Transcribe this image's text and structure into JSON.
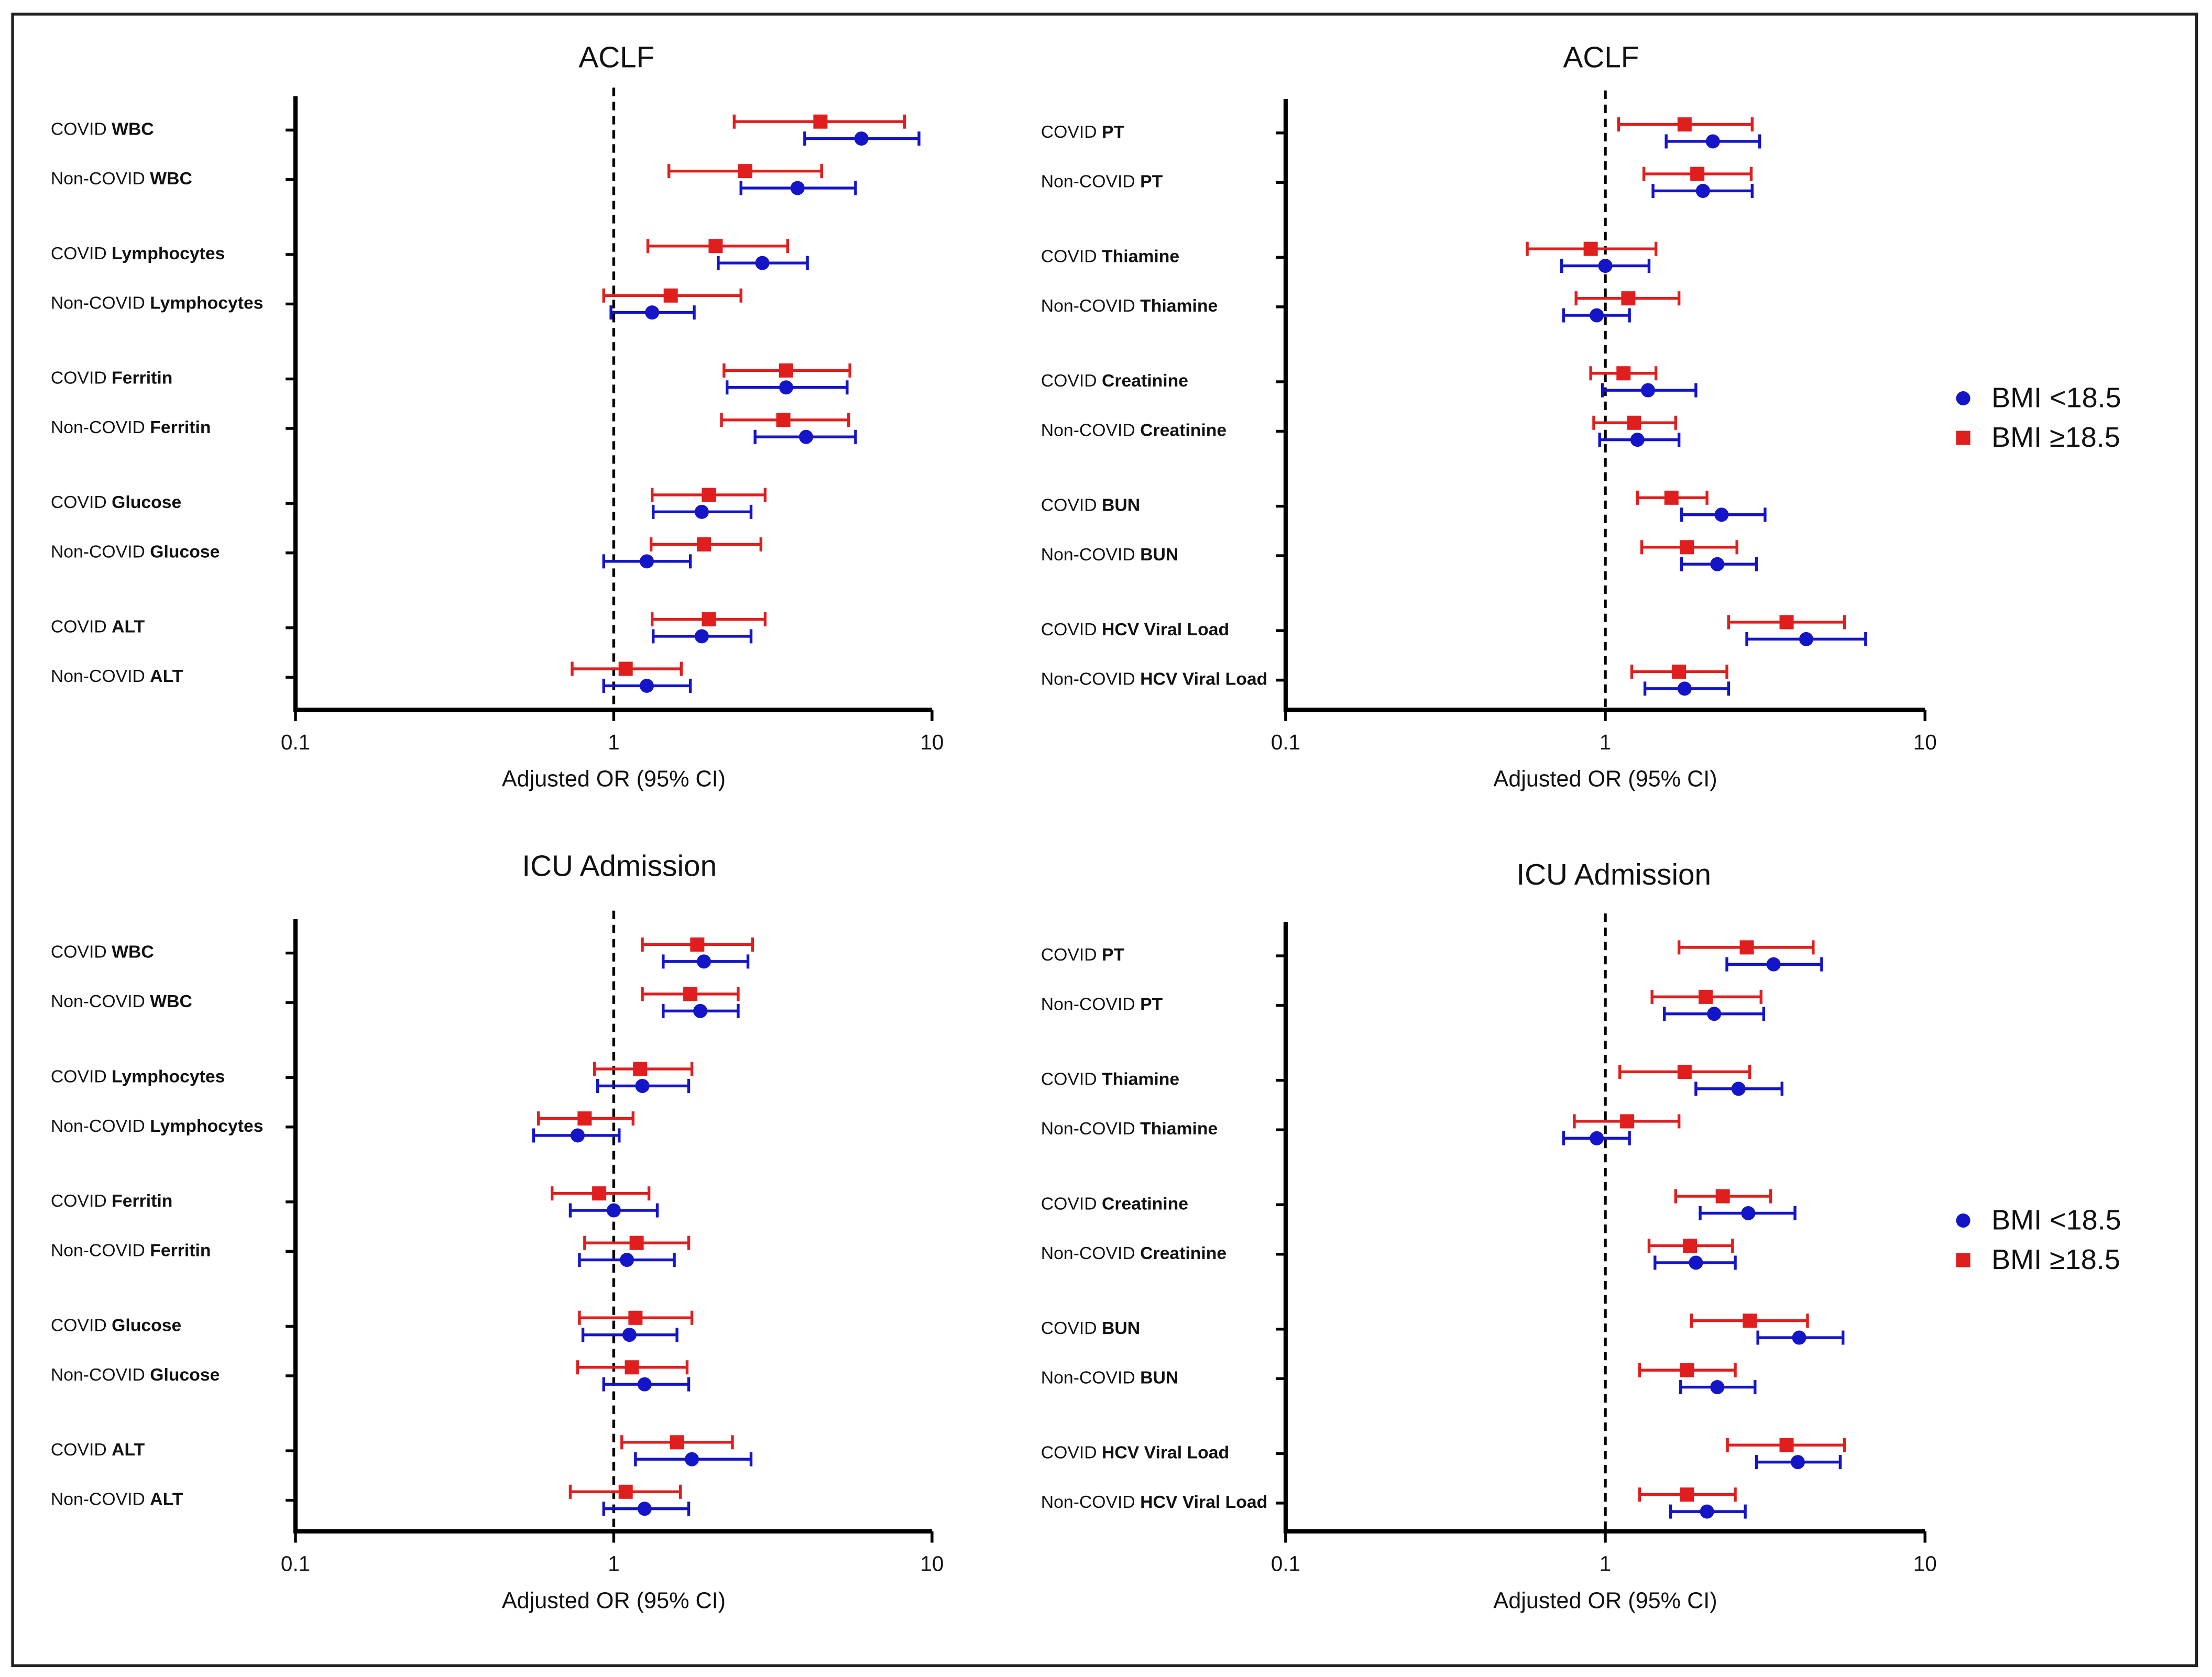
{
  "chart_data": [
    {
      "type": "forest",
      "title": "ACLF",
      "x_label": "Adjusted OR (95% CI)",
      "xscale": "log",
      "xlim": [
        0.1,
        10
      ],
      "xticks": [
        0.1,
        1,
        10
      ],
      "reference_line": 1,
      "categories": [
        [
          "COVID",
          "WBC"
        ],
        [
          "Non-COVID",
          "WBC"
        ],
        [
          "COVID",
          "Lymphocytes"
        ],
        [
          "Non-COVID",
          "Lymphocytes"
        ],
        [
          "COVID",
          "Ferritin"
        ],
        [
          "Non-COVID",
          "Ferritin"
        ],
        [
          "COVID",
          "Glucose"
        ],
        [
          "Non-COVID",
          "Glucose"
        ],
        [
          "COVID",
          "ALT"
        ],
        [
          "Non-COVID",
          "ALT"
        ]
      ],
      "series": [
        {
          "color": "#1414c8",
          "marker": "circle",
          "values": [
            6.0,
            3.78,
            2.93,
            1.32,
            3.48,
            4.02,
            1.89,
            1.27,
            1.89,
            1.27
          ],
          "ci_low": [
            3.98,
            2.51,
            2.13,
            0.98,
            2.27,
            2.78,
            1.33,
            0.93,
            1.33,
            0.93
          ],
          "ci_high": [
            9.1,
            5.75,
            4.06,
            1.79,
            5.41,
            5.75,
            2.7,
            1.74,
            2.7,
            1.74
          ]
        },
        {
          "color": "#e01e1e",
          "marker": "square",
          "values": [
            4.46,
            2.59,
            2.09,
            1.51,
            3.48,
            3.41,
            1.99,
            1.92,
            1.99,
            1.09
          ],
          "ci_low": [
            2.39,
            1.49,
            1.28,
            0.93,
            2.22,
            2.18,
            1.32,
            1.31,
            1.32,
            0.74
          ],
          "ci_high": [
            8.2,
            4.5,
            3.52,
            2.51,
            5.52,
            5.47,
            2.99,
            2.9,
            2.99,
            1.63
          ]
        }
      ]
    },
    {
      "type": "forest",
      "title": "ACLF",
      "x_label": "Adjusted OR (95% CI)",
      "xscale": "log",
      "xlim": [
        0.1,
        10
      ],
      "xticks": [
        0.1,
        1,
        10
      ],
      "reference_line": 1,
      "legend": "right",
      "categories": [
        [
          "COVID",
          "PT"
        ],
        [
          "Non-COVID",
          "PT"
        ],
        [
          "COVID",
          "Thiamine"
        ],
        [
          "Non-COVID",
          "Thiamine"
        ],
        [
          "COVID",
          "Creatinine"
        ],
        [
          "Non-COVID",
          "Creatinine"
        ],
        [
          "COVID",
          "BUN"
        ],
        [
          "Non-COVID",
          "BUN"
        ],
        [
          "COVID",
          "HCV Viral Load"
        ],
        [
          "Non-COVID",
          "HCV Viral Load"
        ]
      ],
      "series": [
        {
          "name": "BMI <18.5",
          "color": "#1414c8",
          "marker": "circle",
          "values": [
            2.17,
            2.02,
            1.0,
            0.94,
            1.36,
            1.26,
            2.31,
            2.24,
            4.25,
            1.77
          ],
          "ci_low": [
            1.55,
            1.41,
            0.73,
            0.74,
            0.98,
            0.96,
            1.73,
            1.73,
            2.77,
            1.33
          ],
          "ci_high": [
            3.04,
            2.88,
            1.37,
            1.19,
            1.92,
            1.7,
            3.16,
            2.97,
            6.52,
            2.43
          ]
        },
        {
          "name": "BMI ≥18.5",
          "color": "#e01e1e",
          "marker": "square",
          "values": [
            1.77,
            1.94,
            0.9,
            1.18,
            1.14,
            1.23,
            1.61,
            1.8,
            3.69,
            1.7
          ],
          "ci_low": [
            1.1,
            1.32,
            0.57,
            0.81,
            0.9,
            0.92,
            1.26,
            1.3,
            2.43,
            1.21
          ],
          "ci_high": [
            2.88,
            2.86,
            1.44,
            1.7,
            1.44,
            1.66,
            2.08,
            2.58,
            5.6,
            2.4
          ]
        }
      ]
    },
    {
      "type": "forest",
      "title": "ICU Admission",
      "x_label": "Adjusted OR (95% CI)",
      "xscale": "log",
      "xlim": [
        0.1,
        10
      ],
      "xticks": [
        0.1,
        1,
        10
      ],
      "reference_line": 1,
      "categories": [
        [
          "COVID",
          "WBC"
        ],
        [
          "Non-COVID",
          "WBC"
        ],
        [
          "COVID",
          "Lymphocytes"
        ],
        [
          "Non-COVID",
          "Lymphocytes"
        ],
        [
          "COVID",
          "Ferritin"
        ],
        [
          "Non-COVID",
          "Ferritin"
        ],
        [
          "COVID",
          "Glucose"
        ],
        [
          "Non-COVID",
          "Glucose"
        ],
        [
          "COVID",
          "ALT"
        ],
        [
          "Non-COVID",
          "ALT"
        ]
      ],
      "series": [
        {
          "color": "#1414c8",
          "marker": "circle",
          "values": [
            1.92,
            1.87,
            1.23,
            0.77,
            1.0,
            1.1,
            1.12,
            1.25,
            1.76,
            1.25
          ],
          "ci_low": [
            1.43,
            1.43,
            0.89,
            0.56,
            0.73,
            0.78,
            0.8,
            0.93,
            1.17,
            0.93
          ],
          "ci_high": [
            2.64,
            2.46,
            1.72,
            1.04,
            1.37,
            1.55,
            1.58,
            1.72,
            2.7,
            1.72
          ]
        },
        {
          "color": "#e01e1e",
          "marker": "square",
          "values": [
            1.83,
            1.74,
            1.21,
            0.81,
            0.9,
            1.18,
            1.17,
            1.14,
            1.58,
            1.09
          ],
          "ci_low": [
            1.23,
            1.23,
            0.87,
            0.58,
            0.64,
            0.81,
            0.78,
            0.77,
            1.06,
            0.73
          ],
          "ci_high": [
            2.73,
            2.46,
            1.76,
            1.15,
            1.29,
            1.72,
            1.76,
            1.7,
            2.36,
            1.62
          ]
        }
      ]
    },
    {
      "type": "forest",
      "title": "ICU Admission",
      "x_label": "Adjusted OR (95% CI)",
      "xscale": "log",
      "xlim": [
        0.1,
        10
      ],
      "xticks": [
        0.1,
        1,
        10
      ],
      "reference_line": 1,
      "legend": "right",
      "categories": [
        [
          "COVID",
          "PT"
        ],
        [
          "Non-COVID",
          "PT"
        ],
        [
          "COVID",
          "Thiamine"
        ],
        [
          "Non-COVID",
          "Thiamine"
        ],
        [
          "COVID",
          "Creatinine"
        ],
        [
          "Non-COVID",
          "Creatinine"
        ],
        [
          "COVID",
          "BUN"
        ],
        [
          "Non-COVID",
          "BUN"
        ],
        [
          "COVID",
          "HCV Viral Load"
        ],
        [
          "Non-COVID",
          "HCV Viral Load"
        ]
      ],
      "series": [
        {
          "name": "BMI <18.5",
          "color": "#1414c8",
          "marker": "circle",
          "values": [
            3.36,
            2.19,
            2.61,
            0.94,
            2.8,
            1.92,
            4.04,
            2.24,
            4.0,
            2.08
          ],
          "ci_low": [
            2.4,
            1.53,
            1.92,
            0.74,
            1.98,
            1.43,
            3.0,
            1.72,
            2.97,
            1.6
          ],
          "ci_high": [
            4.75,
            3.13,
            3.57,
            1.19,
            3.92,
            2.55,
            5.54,
            2.94,
            5.43,
            2.74
          ]
        },
        {
          "name": "BMI ≥18.5",
          "color": "#e01e1e",
          "marker": "square",
          "values": [
            2.77,
            2.06,
            1.77,
            1.17,
            2.33,
            1.84,
            2.83,
            1.8,
            3.69,
            1.8
          ],
          "ci_low": [
            1.7,
            1.4,
            1.11,
            0.8,
            1.66,
            1.37,
            1.86,
            1.28,
            2.41,
            1.28
          ],
          "ci_high": [
            4.47,
            3.07,
            2.83,
            1.7,
            3.29,
            2.5,
            4.29,
            2.55,
            5.6,
            2.55
          ]
        }
      ]
    }
  ]
}
